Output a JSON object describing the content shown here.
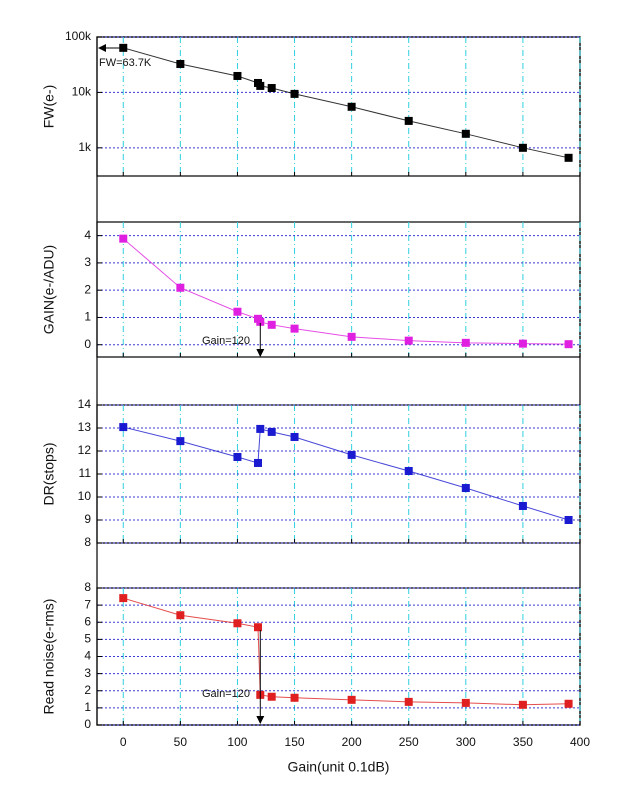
{
  "chart_data": [
    {
      "type": "line",
      "ylabel": "FW(e-)",
      "log_y": true,
      "color": "#000000",
      "x": [
        0,
        50,
        100,
        118,
        120,
        130,
        150,
        200,
        250,
        300,
        350,
        390
      ],
      "values": [
        63700,
        32600,
        19800,
        14800,
        13100,
        12000,
        9400,
        5500,
        3060,
        1790,
        1000,
        660
      ],
      "ylim": [
        310,
        100000
      ],
      "yticks": [
        {
          "value": 1000,
          "label": "1k"
        },
        {
          "value": 10000,
          "label": "10k"
        },
        {
          "value": 100000,
          "label": "100k"
        }
      ],
      "annotations": [
        {
          "text": "FW=63.7K"
        }
      ]
    },
    {
      "type": "line",
      "ylabel": "GAIN(e-/ADU)",
      "color": "#e020e0",
      "x": [
        0,
        50,
        100,
        118,
        120,
        130,
        150,
        200,
        250,
        300,
        350,
        390
      ],
      "values": [
        3.89,
        2.09,
        1.21,
        0.95,
        0.84,
        0.73,
        0.59,
        0.29,
        0.15,
        0.07,
        0.04,
        0.02
      ],
      "ylim": [
        -0.45,
        4.5
      ],
      "yticks": [
        0,
        1,
        2,
        3,
        4
      ],
      "annotations": [
        {
          "text": "Gain=120"
        }
      ]
    },
    {
      "type": "line",
      "ylabel": "DR(stops)",
      "color": "#1a1ad0",
      "x": [
        0,
        50,
        100,
        118,
        120,
        130,
        150,
        200,
        250,
        300,
        350,
        390
      ],
      "values": [
        13.04,
        12.43,
        11.74,
        11.48,
        12.96,
        12.83,
        12.61,
        11.83,
        11.13,
        10.39,
        9.61,
        9.0
      ],
      "ylim": [
        8,
        14
      ],
      "yticks": [
        8,
        9,
        10,
        11,
        12,
        13,
        14
      ]
    },
    {
      "type": "line",
      "ylabel": "Read noise(e-rms)",
      "xlabel": "Gain(unit 0.1dB)",
      "color": "#e02020",
      "x": [
        0,
        50,
        100,
        118,
        120,
        130,
        150,
        200,
        250,
        300,
        350,
        390
      ],
      "values": [
        7.41,
        6.41,
        5.94,
        5.71,
        1.76,
        1.65,
        1.59,
        1.47,
        1.35,
        1.29,
        1.18,
        1.24
      ],
      "ylim": [
        0,
        8
      ],
      "yticks": [
        0,
        1,
        2,
        3,
        4,
        5,
        6,
        7,
        8
      ],
      "xlim": [
        -23,
        400
      ],
      "xticks": [
        0,
        50,
        100,
        150,
        200,
        250,
        300,
        350,
        400
      ],
      "annotations": [
        {
          "text": "Gain=120"
        }
      ]
    }
  ]
}
